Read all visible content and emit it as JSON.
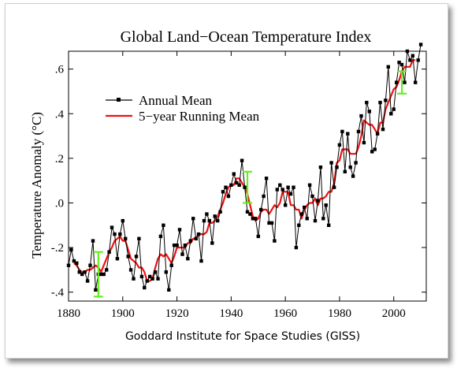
{
  "chart_data": {
    "type": "line",
    "title": "Global Land−Ocean Temperature Index",
    "xlabel": "Goddard Institute for Space Studies (GISS)",
    "ylabel": "Temperature Anomaly (°C)",
    "xlim": [
      1880,
      2012
    ],
    "ylim": [
      -0.44,
      0.68
    ],
    "x_ticks": [
      1880,
      1900,
      1920,
      1940,
      1960,
      1980,
      2000
    ],
    "y_ticks": [
      -0.4,
      -0.2,
      0.0,
      0.2,
      0.4,
      0.6
    ],
    "y_tick_labels": [
      "-.4",
      "-.2",
      ".0",
      ".2",
      ".4",
      ".6"
    ],
    "legend_position": "upper-left",
    "colors": {
      "annual": "#000000",
      "running": "#ee1111",
      "error_bars": "#66ee22"
    },
    "x": [
      1880,
      1881,
      1882,
      1883,
      1884,
      1885,
      1886,
      1887,
      1888,
      1889,
      1890,
      1891,
      1892,
      1893,
      1894,
      1895,
      1896,
      1897,
      1898,
      1899,
      1900,
      1901,
      1902,
      1903,
      1904,
      1905,
      1906,
      1907,
      1908,
      1909,
      1910,
      1911,
      1912,
      1913,
      1914,
      1915,
      1916,
      1917,
      1918,
      1919,
      1920,
      1921,
      1922,
      1923,
      1924,
      1925,
      1926,
      1927,
      1928,
      1929,
      1930,
      1931,
      1932,
      1933,
      1934,
      1935,
      1936,
      1937,
      1938,
      1939,
      1940,
      1941,
      1942,
      1943,
      1944,
      1945,
      1946,
      1947,
      1948,
      1949,
      1950,
      1951,
      1952,
      1953,
      1954,
      1955,
      1956,
      1957,
      1958,
      1959,
      1960,
      1961,
      1962,
      1963,
      1964,
      1965,
      1966,
      1967,
      1968,
      1969,
      1970,
      1971,
      1972,
      1973,
      1974,
      1975,
      1976,
      1977,
      1978,
      1979,
      1980,
      1981,
      1982,
      1983,
      1984,
      1985,
      1986,
      1987,
      1988,
      1989,
      1990,
      1991,
      1992,
      1993,
      1994,
      1995,
      1996,
      1997,
      1998,
      1999,
      2000,
      2001,
      2002,
      2003,
      2004,
      2005,
      2006,
      2007,
      2008,
      2009,
      2010
    ],
    "series": [
      {
        "name": "Annual Mean",
        "values": [
          -0.28,
          -0.21,
          -0.26,
          -0.27,
          -0.31,
          -0.32,
          -0.31,
          -0.35,
          -0.28,
          -0.17,
          -0.39,
          -0.32,
          -0.32,
          -0.32,
          -0.3,
          -0.22,
          -0.11,
          -0.14,
          -0.25,
          -0.14,
          -0.08,
          -0.16,
          -0.24,
          -0.3,
          -0.34,
          -0.24,
          -0.16,
          -0.33,
          -0.38,
          -0.35,
          -0.33,
          -0.34,
          -0.31,
          -0.34,
          -0.15,
          -0.1,
          -0.31,
          -0.39,
          -0.28,
          -0.19,
          -0.19,
          -0.12,
          -0.23,
          -0.19,
          -0.25,
          -0.17,
          -0.07,
          -0.16,
          -0.14,
          -0.26,
          -0.08,
          -0.05,
          -0.08,
          -0.18,
          -0.06,
          -0.08,
          -0.04,
          0.05,
          0.07,
          0.03,
          0.08,
          0.13,
          0.09,
          0.08,
          0.19,
          0.07,
          -0.04,
          -0.05,
          -0.07,
          -0.07,
          -0.15,
          -0.03,
          0.03,
          0.11,
          -0.09,
          -0.09,
          -0.17,
          0.06,
          0.08,
          0.06,
          -0.01,
          0.07,
          0.04,
          0.07,
          -0.2,
          -0.1,
          -0.05,
          -0.02,
          -0.07,
          0.08,
          0.03,
          -0.08,
          0.01,
          0.16,
          -0.07,
          -0.01,
          -0.1,
          0.18,
          0.07,
          0.16,
          0.26,
          0.32,
          0.14,
          0.31,
          0.16,
          0.12,
          0.18,
          0.32,
          0.39,
          0.27,
          0.45,
          0.41,
          0.23,
          0.24,
          0.31,
          0.45,
          0.33,
          0.46,
          0.61,
          0.4,
          0.42,
          0.54,
          0.63,
          0.62,
          0.54,
          0.68,
          0.64,
          0.66,
          0.54,
          0.64,
          0.71
        ]
      },
      {
        "name": "5−year Running Mean",
        "values": [
          null,
          null,
          -0.27,
          -0.28,
          -0.3,
          -0.31,
          -0.31,
          -0.3,
          -0.3,
          -0.29,
          -0.28,
          -0.29,
          -0.31,
          -0.28,
          -0.25,
          -0.22,
          -0.2,
          -0.17,
          -0.16,
          -0.15,
          -0.17,
          -0.17,
          -0.21,
          -0.25,
          -0.26,
          -0.27,
          -0.29,
          -0.29,
          -0.31,
          -0.35,
          -0.35,
          -0.34,
          -0.29,
          -0.25,
          -0.23,
          -0.24,
          -0.23,
          -0.25,
          -0.27,
          -0.24,
          -0.2,
          -0.2,
          -0.2,
          -0.2,
          -0.18,
          -0.18,
          -0.16,
          -0.16,
          -0.14,
          -0.14,
          -0.14,
          -0.13,
          -0.09,
          -0.09,
          -0.08,
          -0.06,
          -0.03,
          0.0,
          0.04,
          0.07,
          0.08,
          0.08,
          0.11,
          0.11,
          0.09,
          0.07,
          0.04,
          -0.01,
          -0.06,
          -0.08,
          -0.07,
          -0.04,
          -0.03,
          -0.03,
          -0.05,
          -0.03,
          -0.01,
          -0.02,
          0.0,
          0.05,
          0.05,
          0.05,
          -0.01,
          -0.01,
          -0.03,
          -0.03,
          -0.07,
          -0.03,
          -0.01,
          0.0,
          0.0,
          0.02,
          -0.01,
          0.02,
          0.02,
          0.03,
          0.05,
          0.05,
          0.09,
          0.18,
          0.19,
          0.24,
          0.24,
          0.24,
          0.22,
          0.22,
          0.22,
          0.25,
          0.3,
          0.37,
          0.36,
          0.35,
          0.35,
          0.33,
          0.31,
          0.36,
          0.36,
          0.42,
          0.45,
          0.48,
          0.51,
          0.52,
          0.55,
          0.59,
          0.61,
          0.61,
          0.61,
          0.64,
          0.64,
          null,
          null
        ]
      }
    ],
    "error_bars": [
      {
        "x": 1891,
        "y": -0.32,
        "half_width": 0.1
      },
      {
        "x": 1946,
        "y": 0.07,
        "half_width": 0.07
      },
      {
        "x": 2003,
        "y": 0.54,
        "half_width": 0.05
      }
    ],
    "legend": [
      "Annual Mean",
      "5−year Running Mean"
    ]
  }
}
